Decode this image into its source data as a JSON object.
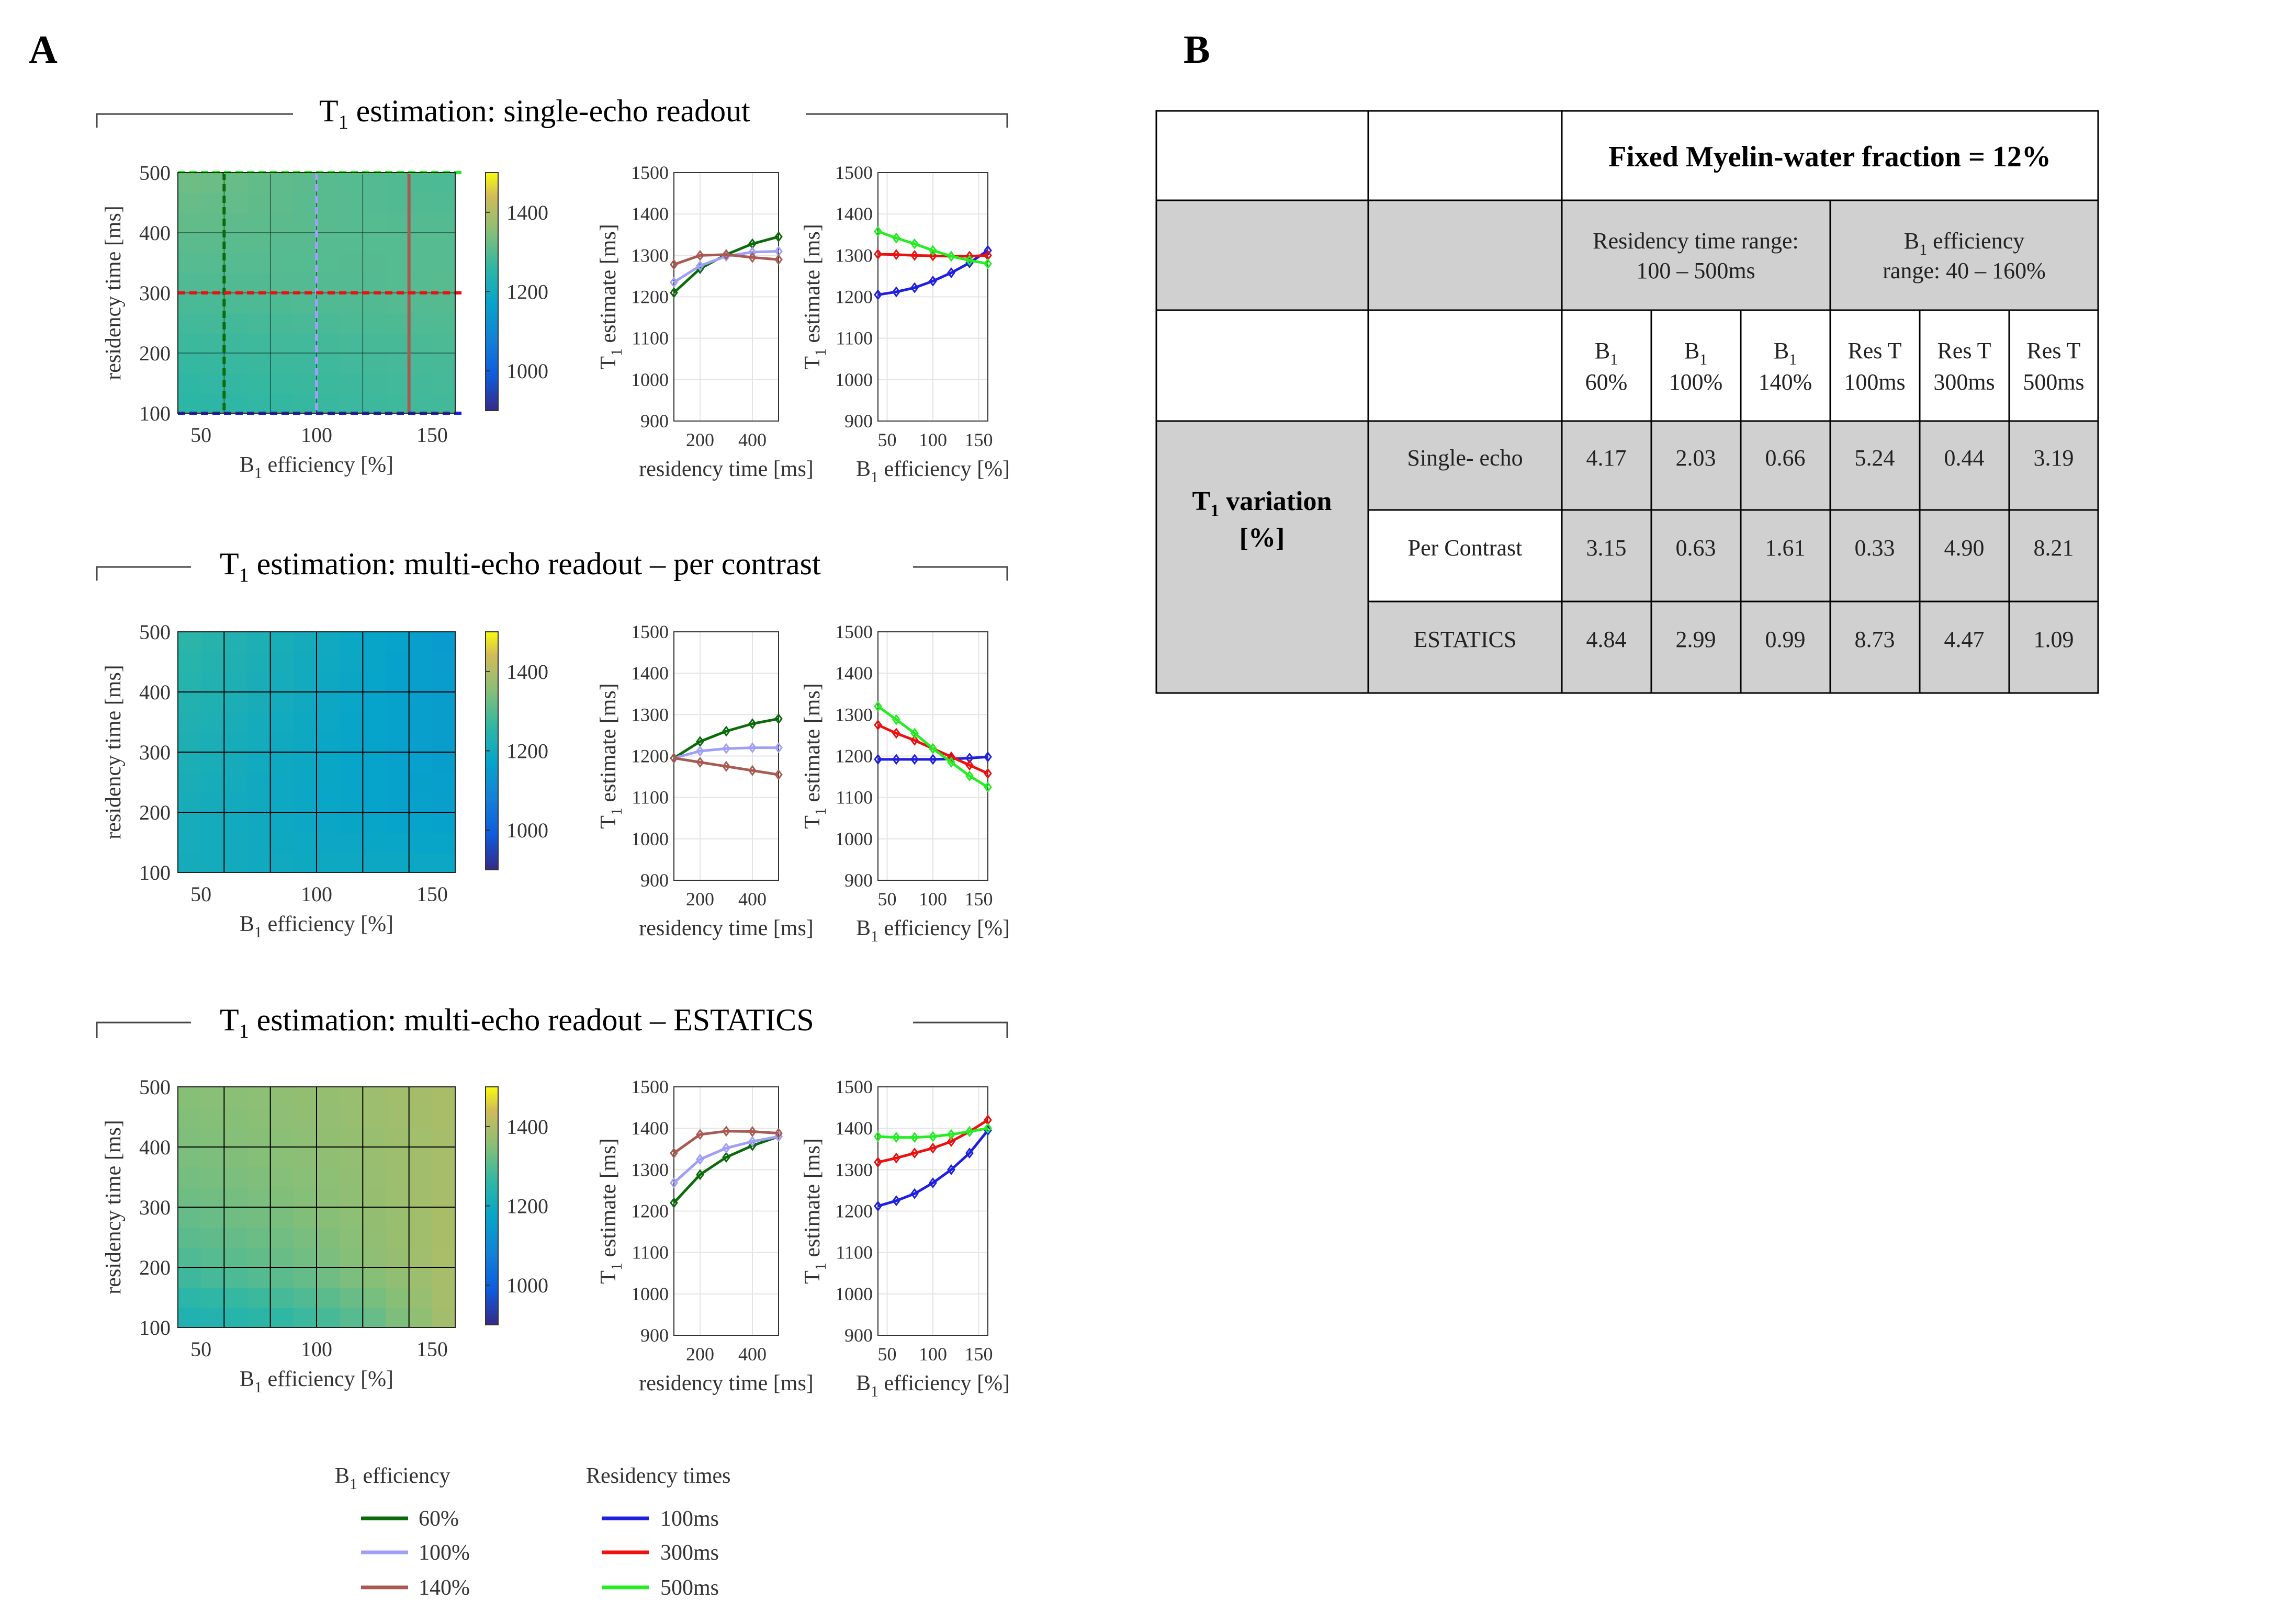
{
  "panels": {
    "a": "A",
    "b": "B"
  },
  "colorbar": {
    "ticks": [
      "1000",
      "1200",
      "1400"
    ],
    "range": [
      900,
      1500
    ]
  },
  "heatmap_axes": {
    "xlabel": "efficiency [%]",
    "ylabel": "residency time [ms]",
    "xticks": [
      "50",
      "100",
      "150"
    ],
    "yticks": [
      "100",
      "200",
      "300",
      "400",
      "500"
    ]
  },
  "line_axes": {
    "ylabel": "estimate [ms]",
    "yticks": [
      "900",
      "1000",
      "1100",
      "1200",
      "1300",
      "1400",
      "1500"
    ],
    "res_xlabel": "residency time [ms]",
    "res_xticks": [
      "200",
      "400"
    ],
    "b1_xlabel": "efficiency [%]",
    "b1_xticks": [
      "50",
      "100",
      "150"
    ]
  },
  "symbols": {
    "T": "T",
    "B": "B",
    "sub1": "1"
  },
  "rows": [
    {
      "title_rest": "estimation: single-echo readout"
    },
    {
      "title_rest": "estimation: multi-echo readout – per contrast"
    },
    {
      "title_rest": "estimation: multi-echo readout – ESTATICS"
    }
  ],
  "chart_data": [
    {
      "type": "heatmap",
      "title": "T1 estimation: single-echo readout",
      "x": [
        40,
        60,
        80,
        100,
        120,
        140,
        160
      ],
      "y": [
        100,
        200,
        300,
        400,
        500
      ],
      "z": [
        [
          1250,
          1255,
          1262,
          1268,
          1272,
          1278,
          1282
        ],
        [
          1270,
          1272,
          1275,
          1278,
          1282,
          1285,
          1288
        ],
        [
          1290,
          1292,
          1295,
          1297,
          1298,
          1300,
          1302
        ],
        [
          1310,
          1308,
          1305,
          1302,
          1300,
          1300,
          1300
        ],
        [
          1330,
          1322,
          1312,
          1305,
          1298,
          1292,
          1288
        ]
      ],
      "guides": {
        "b1_lines": [
          60,
          100,
          140
        ],
        "res_lines": [
          100,
          300,
          500
        ]
      },
      "xlabel": "B1 efficiency [%]",
      "ylabel": "residency time [ms]",
      "clim": [
        900,
        1500
      ]
    },
    {
      "type": "line",
      "xlabel": "residency time [ms]",
      "ylabel": "T1 estimate [ms]",
      "x": [
        100,
        200,
        300,
        400,
        500
      ],
      "ylim": [
        900,
        1500
      ],
      "xlim": [
        100,
        500
      ],
      "series": [
        {
          "name": "60%",
          "color": "#0a6b0a",
          "values": [
            1210,
            1268,
            1302,
            1328,
            1345
          ]
        },
        {
          "name": "100%",
          "color": "#9f9ff8",
          "values": [
            1235,
            1275,
            1298,
            1308,
            1310
          ]
        },
        {
          "name": "140%",
          "color": "#a85a52",
          "values": [
            1278,
            1300,
            1302,
            1295,
            1290
          ]
        }
      ]
    },
    {
      "type": "line",
      "xlabel": "B1 efficiency [%]",
      "ylabel": "T1 estimate [ms]",
      "x": [
        40,
        60,
        80,
        100,
        120,
        140,
        160
      ],
      "ylim": [
        900,
        1500
      ],
      "xlim": [
        40,
        160
      ],
      "series": [
        {
          "name": "100ms",
          "color": "#1f1fe0",
          "values": [
            1205,
            1212,
            1222,
            1238,
            1258,
            1282,
            1312
          ]
        },
        {
          "name": "300ms",
          "color": "#ee1010",
          "values": [
            1303,
            1302,
            1300,
            1299,
            1298,
            1298,
            1300
          ]
        },
        {
          "name": "500ms",
          "color": "#22ee22",
          "values": [
            1358,
            1342,
            1328,
            1312,
            1298,
            1288,
            1280
          ]
        }
      ]
    },
    {
      "type": "heatmap",
      "title": "T1 estimation: multi-echo readout – per contrast",
      "x": [
        40,
        60,
        80,
        100,
        120,
        140,
        160
      ],
      "y": [
        100,
        200,
        300,
        400,
        500
      ],
      "z": [
        [
          1205,
          1200,
          1195,
          1192,
          1190,
          1188,
          1186
        ],
        [
          1210,
          1200,
          1190,
          1180,
          1172,
          1165,
          1160
        ],
        [
          1225,
          1210,
          1195,
          1182,
          1170,
          1160,
          1150
        ],
        [
          1240,
          1225,
          1208,
          1192,
          1175,
          1162,
          1148
        ],
        [
          1258,
          1240,
          1220,
          1200,
          1180,
          1162,
          1142
        ]
      ],
      "xlabel": "B1 efficiency [%]",
      "ylabel": "residency time [ms]",
      "clim": [
        900,
        1500
      ]
    },
    {
      "type": "line",
      "xlabel": "residency time [ms]",
      "ylabel": "T1 estimate [ms]",
      "x": [
        100,
        200,
        300,
        400,
        500
      ],
      "ylim": [
        900,
        1500
      ],
      "xlim": [
        100,
        500
      ],
      "series": [
        {
          "name": "60%",
          "color": "#0a6b0a",
          "values": [
            1195,
            1235,
            1260,
            1278,
            1290
          ]
        },
        {
          "name": "100%",
          "color": "#9f9ff8",
          "values": [
            1195,
            1212,
            1218,
            1220,
            1220
          ]
        },
        {
          "name": "140%",
          "color": "#a85a52",
          "values": [
            1195,
            1185,
            1175,
            1165,
            1155
          ]
        }
      ]
    },
    {
      "type": "line",
      "xlabel": "B1 efficiency [%]",
      "ylabel": "T1 estimate [ms]",
      "x": [
        40,
        60,
        80,
        100,
        120,
        140,
        160
      ],
      "ylim": [
        900,
        1500
      ],
      "xlim": [
        40,
        160
      ],
      "series": [
        {
          "name": "100ms",
          "color": "#1f1fe0",
          "values": [
            1192,
            1192,
            1192,
            1192,
            1193,
            1195,
            1198
          ]
        },
        {
          "name": "300ms",
          "color": "#ee1010",
          "values": [
            1275,
            1255,
            1238,
            1218,
            1198,
            1178,
            1158
          ]
        },
        {
          "name": "500ms",
          "color": "#22ee22",
          "values": [
            1320,
            1288,
            1255,
            1218,
            1185,
            1152,
            1125
          ]
        }
      ]
    },
    {
      "type": "heatmap",
      "title": "T1 estimation: multi-echo readout – ESTATICS",
      "x": [
        40,
        60,
        80,
        100,
        120,
        140,
        160
      ],
      "y": [
        100,
        200,
        300,
        400,
        500
      ],
      "z": [
        [
          1215,
          1228,
          1245,
          1268,
          1300,
          1345,
          1395
        ],
        [
          1285,
          1298,
          1312,
          1330,
          1352,
          1375,
          1398
        ],
        [
          1320,
          1328,
          1338,
          1350,
          1362,
          1378,
          1395
        ],
        [
          1340,
          1345,
          1352,
          1360,
          1370,
          1380,
          1392
        ],
        [
          1350,
          1355,
          1360,
          1368,
          1375,
          1385,
          1395
        ]
      ],
      "xlabel": "B1 efficiency [%]",
      "ylabel": "residency time [ms]",
      "clim": [
        900,
        1500
      ]
    },
    {
      "type": "line",
      "xlabel": "residency time [ms]",
      "ylabel": "T1 estimate [ms]",
      "x": [
        100,
        200,
        300,
        400,
        500
      ],
      "ylim": [
        900,
        1500
      ],
      "xlim": [
        100,
        500
      ],
      "series": [
        {
          "name": "60%",
          "color": "#0a6b0a",
          "values": [
            1220,
            1288,
            1330,
            1358,
            1380
          ]
        },
        {
          "name": "100%",
          "color": "#9f9ff8",
          "values": [
            1268,
            1325,
            1352,
            1368,
            1380
          ]
        },
        {
          "name": "140%",
          "color": "#a85a52",
          "values": [
            1340,
            1385,
            1393,
            1392,
            1388
          ]
        }
      ]
    },
    {
      "type": "line",
      "xlabel": "B1 efficiency [%]",
      "ylabel": "T1 estimate [ms]",
      "x": [
        40,
        60,
        80,
        100,
        120,
        140,
        160
      ],
      "ylim": [
        900,
        1500
      ],
      "xlim": [
        40,
        160
      ],
      "series": [
        {
          "name": "100ms",
          "color": "#1f1fe0",
          "values": [
            1212,
            1225,
            1242,
            1268,
            1300,
            1340,
            1395
          ]
        },
        {
          "name": "300ms",
          "color": "#ee1010",
          "values": [
            1318,
            1328,
            1340,
            1352,
            1368,
            1392,
            1420
          ]
        },
        {
          "name": "500ms",
          "color": "#22ee22",
          "values": [
            1380,
            1378,
            1378,
            1380,
            1385,
            1392,
            1400
          ]
        }
      ]
    }
  ],
  "legend": {
    "b1_title_rest": "efficiency",
    "b1_items": [
      {
        "label": "60%",
        "color": "#0a6b0a"
      },
      {
        "label": "100%",
        "color": "#9f9ff8"
      },
      {
        "label": "140%",
        "color": "#a85a52"
      }
    ],
    "res_title": "Residency times",
    "res_items": [
      {
        "label": "100ms",
        "color": "#1f1fe0"
      },
      {
        "label": "300ms",
        "color": "#ee1010"
      },
      {
        "label": "500ms",
        "color": "#22ee22"
      }
    ]
  },
  "table": {
    "title": "Fixed Myelin-water fraction = 12%",
    "group1": [
      "Residency time range:",
      "100 – 500ms"
    ],
    "group2_line1_rest": "efficiency",
    "group2_line2": "range: 40 – 160%",
    "col_b1": [
      "60%",
      "100%",
      "140%"
    ],
    "col_res_top": [
      "Res T",
      "Res T",
      "Res T"
    ],
    "col_res_bot": [
      "100ms",
      "300ms",
      "500ms"
    ],
    "row_header": [
      "variation",
      "[%]"
    ],
    "rows": [
      {
        "label": "Single- echo",
        "values": [
          "4.17",
          "2.03",
          "0.66",
          "5.24",
          "0.44",
          "3.19"
        ]
      },
      {
        "label": "Per Contrast",
        "values": [
          "3.15",
          "0.63",
          "1.61",
          "0.33",
          "4.90",
          "8.21"
        ]
      },
      {
        "label": "ESTATICS",
        "values": [
          "4.84",
          "2.99",
          "0.99",
          "8.73",
          "4.47",
          "1.09"
        ]
      }
    ]
  },
  "colors": {
    "table_gray": "#d0d0d0",
    "grid": "#000000"
  }
}
